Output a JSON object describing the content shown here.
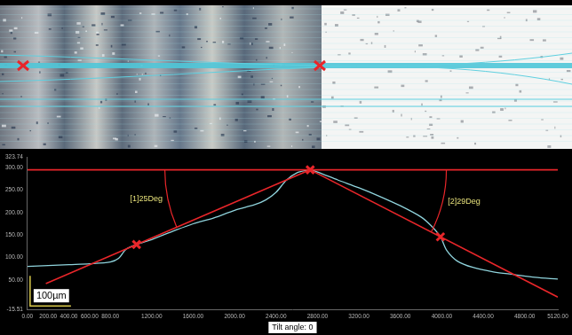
{
  "chart_data": {
    "type": "line",
    "x": [
      0,
      200,
      400,
      600,
      800,
      880,
      950,
      1053,
      1200,
      1400,
      1600,
      1800,
      2000,
      2200,
      2300,
      2400,
      2500,
      2600,
      2700,
      2730,
      2800,
      3000,
      3200,
      3400,
      3600,
      3800,
      3900,
      3987,
      4050,
      4150,
      4300,
      4500,
      4700,
      4900,
      5120
    ],
    "series": [
      {
        "color": "#8fd3dc",
        "values": [
          80,
          82,
          84,
          86,
          90,
          98,
          118,
          129,
          140,
          158,
          175,
          188,
          205,
          218,
          228,
          245,
          272,
          288,
          294,
          295,
          290,
          272,
          255,
          236,
          215,
          190,
          170,
          146,
          115,
          92,
          78,
          68,
          62,
          56,
          52
        ]
      }
    ],
    "reference_lines": [
      {
        "color": "#e8262a",
        "x": [
          0,
          5120
        ],
        "y": [
          295,
          295
        ]
      },
      {
        "color": "#e8262a",
        "x": [
          178,
          2730
        ],
        "y": [
          42,
          295
        ],
        "label": "[1]25Deg"
      },
      {
        "color": "#e8262a",
        "x": [
          2730,
          5120
        ],
        "y": [
          295,
          12
        ],
        "label": "[2]29Deg"
      }
    ],
    "markers": {
      "color": "#e8262a",
      "marker": "x",
      "x": [
        1053,
        2730,
        3987
      ],
      "y": [
        129,
        295,
        146
      ]
    },
    "xlim": [
      0,
      5120
    ],
    "xticks": [
      {
        "value": 0,
        "label": "0.00"
      },
      {
        "value": 200,
        "label": "200.00"
      },
      {
        "value": 400,
        "label": "400.00"
      },
      {
        "value": 600,
        "label": "600.00"
      },
      {
        "value": 800,
        "label": "800.00"
      },
      {
        "value": 1200,
        "label": "1200.00"
      },
      {
        "value": 1600,
        "label": "1600.00"
      },
      {
        "value": 2000,
        "label": "2000.00"
      },
      {
        "value": 2400,
        "label": "2400.00"
      },
      {
        "value": 2800,
        "label": "2800.00"
      },
      {
        "value": 3200,
        "label": "3200.00"
      },
      {
        "value": 3600,
        "label": "3600.00"
      },
      {
        "value": 4000,
        "label": "4000.00"
      },
      {
        "value": 4400,
        "label": "4400.00"
      },
      {
        "value": 4800,
        "label": "4800.00"
      },
      {
        "value": 5120,
        "label": "5120.00"
      }
    ],
    "ylim": [
      -15.51,
      323.74
    ],
    "yticks": [
      -15.51,
      {
        "value": 50,
        "label": "50.00"
      },
      {
        "value": 100,
        "label": "100.00"
      },
      {
        "value": 150,
        "label": "150.00"
      },
      {
        "value": 200,
        "label": "200.00"
      },
      {
        "value": 250,
        "label": "250.00"
      },
      {
        "value": 300,
        "label": "300.00"
      },
      323.74
    ],
    "grid": false,
    "scale_bar": "100µm",
    "footer": "Tilt angle: 0"
  }
}
